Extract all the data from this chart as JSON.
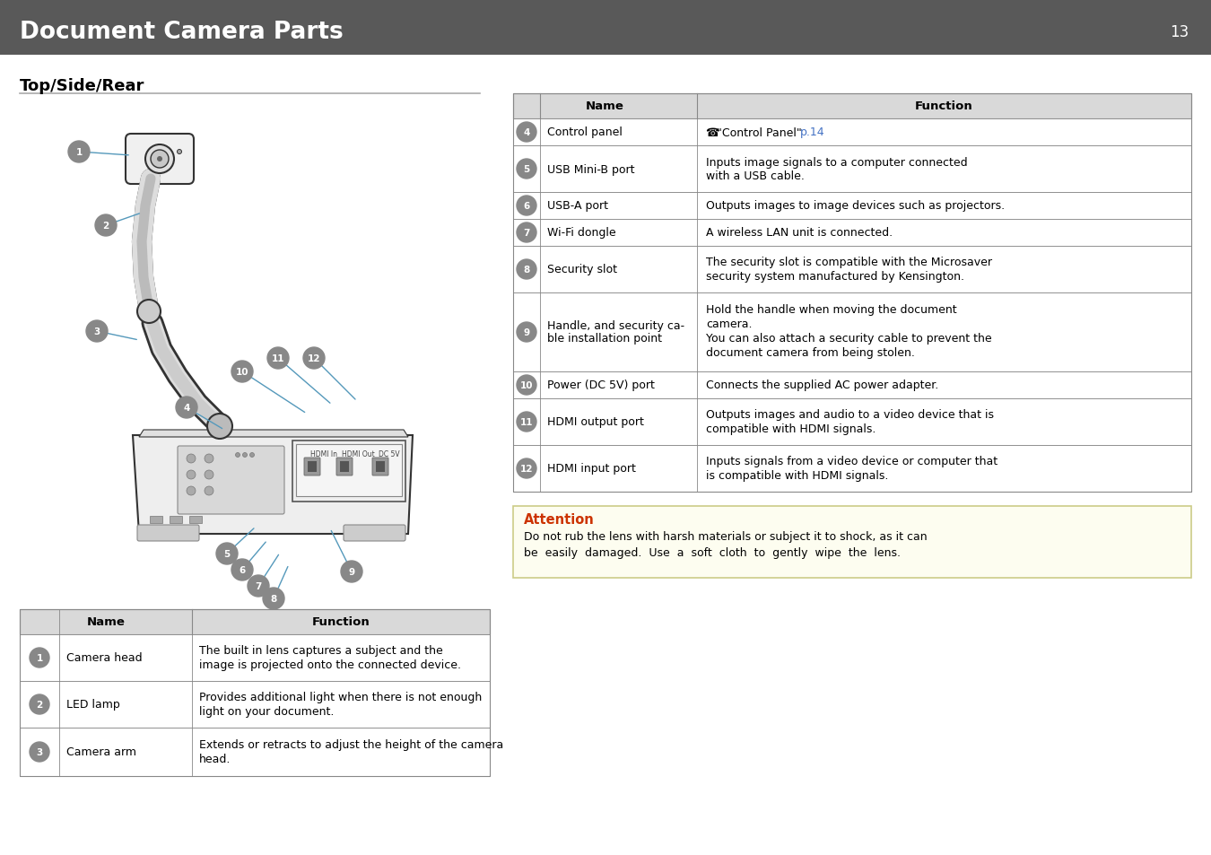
{
  "page_bg": "#ffffff",
  "header_bg": "#595959",
  "header_text": "Document Camera Parts",
  "header_page_num": "13",
  "header_text_color": "#ffffff",
  "section_title": "Top/Side/Rear",
  "table1_header_bg": "#d9d9d9",
  "table2_header_bg": "#d9d9d9",
  "attention_bg": "#fdfdf0",
  "attention_border": "#cccc88",
  "attention_title": "Attention",
  "attention_title_color": "#cc3300",
  "attention_text_line1": "Do not rub the lens with harsh materials or subject it to shock, as it can",
  "attention_text_line2": "be  easily  damaged.  Use  a  soft  cloth  to  gently  wipe  the  lens.",
  "table1_rows": [
    {
      "num": "4",
      "name": "Control panel",
      "func_parts": [
        {
          "text": "☎ ",
          "color": "#000000"
        },
        {
          "text": "\"Control Panel\" ",
          "color": "#000000"
        },
        {
          "text": "p.14",
          "color": "#4472c4"
        }
      ]
    },
    {
      "num": "5",
      "name": "USB Mini-B port",
      "func": "Inputs image signals to a computer connected\nwith a USB cable."
    },
    {
      "num": "6",
      "name": "USB-A port",
      "func": "Outputs images to image devices such as projectors."
    },
    {
      "num": "7",
      "name": "Wi-Fi dongle",
      "func": "A wireless LAN unit is connected."
    },
    {
      "num": "8",
      "name": "Security slot",
      "func": "The security slot is compatible with the Microsaver\nsecurity system manufactured by Kensington."
    },
    {
      "num": "9",
      "name": "Handle, and security ca-\nble installation point",
      "func": "Hold the handle when moving the document\ncamera.\nYou can also attach a security cable to prevent the\ndocument camera from being stolen."
    },
    {
      "num": "10",
      "name": "Power (DC 5V) port",
      "func": "Connects the supplied AC power adapter."
    },
    {
      "num": "11",
      "name": "HDMI output port",
      "func": "Outputs images and audio to a video device that is\ncompatible with HDMI signals."
    },
    {
      "num": "12",
      "name": "HDMI input port",
      "func": "Inputs signals from a video device or computer that\nis compatible with HDMI signals."
    }
  ],
  "table2_rows": [
    {
      "num": "1",
      "name": "Camera head",
      "func": "The built in lens captures a subject and the\nimage is projected onto the connected device."
    },
    {
      "num": "2",
      "name": "LED lamp",
      "func": "Provides additional light when there is not enough\nlight on your document."
    },
    {
      "num": "3",
      "name": "Camera arm",
      "func": "Extends or retracts to adjust the height of the camera\nhead."
    }
  ],
  "circle_color": "#888888",
  "circle_text_color": "#ffffff",
  "link_color": "#4472c4",
  "line_color": "#000000",
  "body_text_color": "#000000",
  "diagram_line_color": "#5599bb"
}
